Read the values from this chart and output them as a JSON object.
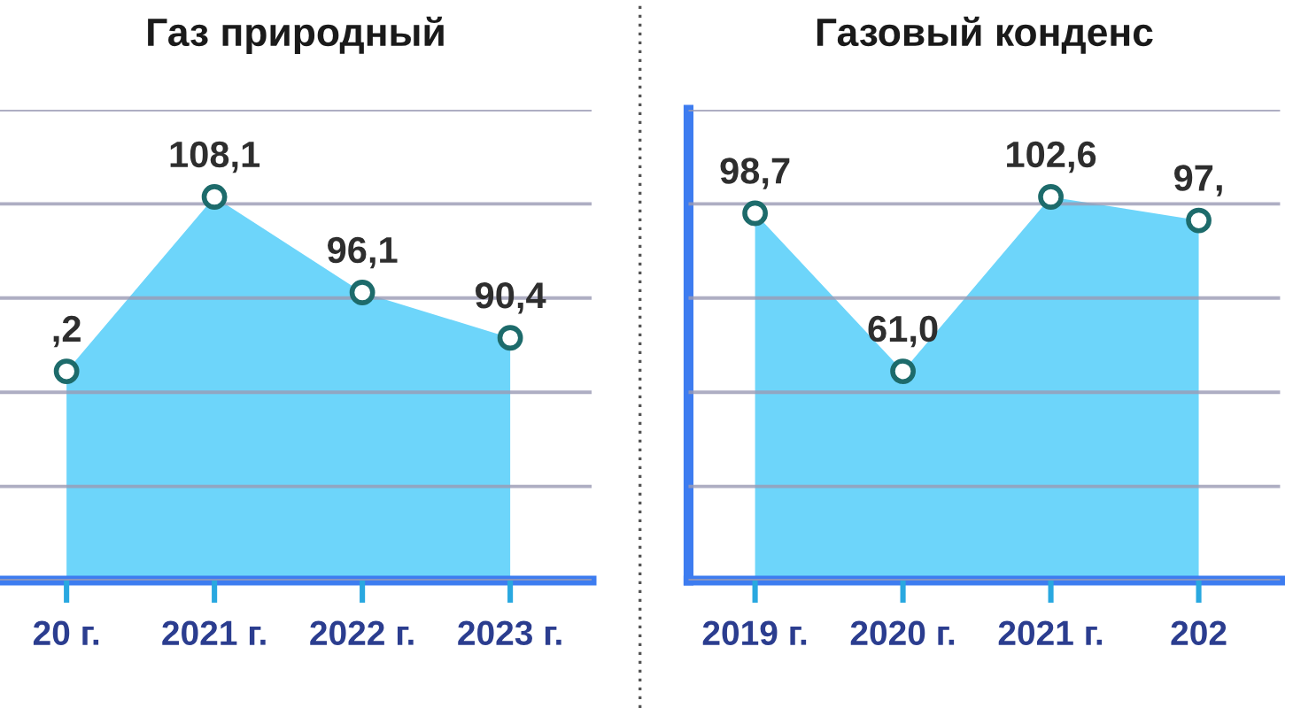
{
  "chart_data": [
    {
      "type": "area",
      "title": "Газ природный",
      "categories": [
        "20 г.",
        "2021 г.",
        "2022 г.",
        "2023 г."
      ],
      "series": [
        {
          "color": "#6dd5fa",
          "values": [
            86.2,
            108.1,
            96.1,
            90.4
          ],
          "value_labels": [
            null,
            "108,1",
            "96,1",
            "90,4"
          ]
        }
      ],
      "annotations": [
        {
          "text": ",2",
          "x": "20 г.",
          "y": 86.2
        }
      ],
      "grid": "y",
      "tick_labels": "x",
      "marker": "circle"
    },
    {
      "type": "area",
      "title": "Газовый конденс",
      "categories": [
        "2019 г.",
        "2020 г.",
        "2021 г.",
        "202"
      ],
      "series": [
        {
          "color": "#6dd5fa",
          "values": [
            98.7,
            61.0,
            102.6,
            97
          ],
          "value_labels": [
            "98,7",
            "61,0",
            "102,6",
            "97,"
          ]
        }
      ],
      "grid": "y",
      "tick_labels": "x",
      "marker": "circle"
    }
  ]
}
